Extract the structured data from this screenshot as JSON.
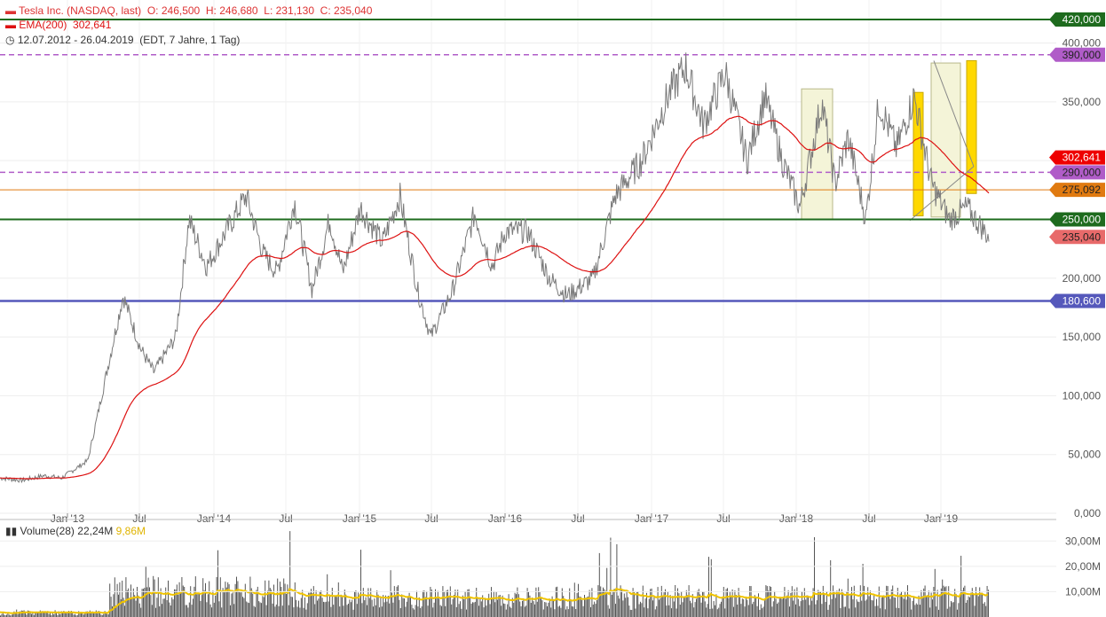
{
  "header": {
    "title": "Tesla Inc. (NASDAQ, last)",
    "ohlc": "O: 246,500  H: 246,680  L: 231,130  C: 235,040",
    "ema_label": "EMA(200)",
    "ema_value": "302,641",
    "range": "12.07.2012 - 26.04.2019",
    "range_meta": "(EDT, 7 Jahre, 1 Tag)"
  },
  "volume_header": {
    "label": "Volume(28)",
    "value": "22,24M",
    "avg": "9,86M"
  },
  "colors": {
    "price": "#7a7a7a",
    "ema": "#dd1111",
    "green_level": "#1e6b1e",
    "violet_level": "#b05cc8",
    "orange_level": "#e07a10",
    "blue_level": "#5558bb",
    "volume_bar": "#555555",
    "volume_avg": "#f0c400",
    "last_price": "#e86a6a"
  },
  "chart_data": {
    "type": "line",
    "ylim": [
      0,
      420
    ],
    "yticks": [
      "0,000",
      "50,000",
      "100,000",
      "150,000",
      "200,000",
      "350,000",
      "400,000"
    ],
    "xticks": [
      "Jan '13",
      "Jul",
      "Jan '14",
      "Jul",
      "Jan '15",
      "Jul",
      "Jan '16",
      "Jul",
      "Jan '17",
      "Jul",
      "Jan '18",
      "Jul",
      "Jan '19"
    ],
    "price_key_points": [
      [
        0,
        30
      ],
      [
        0.05,
        28
      ],
      [
        0.1,
        32
      ],
      [
        0.14,
        30
      ],
      [
        0.2,
        45
      ],
      [
        0.28,
        185
      ],
      [
        0.32,
        140
      ],
      [
        0.35,
        120
      ],
      [
        0.4,
        150
      ],
      [
        0.43,
        250
      ],
      [
        0.47,
        210
      ],
      [
        0.53,
        250
      ],
      [
        0.56,
        270
      ],
      [
        0.6,
        220
      ],
      [
        0.63,
        205
      ],
      [
        0.67,
        265
      ],
      [
        0.71,
        190
      ],
      [
        0.75,
        250
      ],
      [
        0.78,
        205
      ],
      [
        0.82,
        260
      ],
      [
        0.87,
        230
      ],
      [
        0.91,
        270
      ],
      [
        0.95,
        190
      ],
      [
        0.98,
        150
      ],
      [
        1.03,
        190
      ],
      [
        1.08,
        255
      ],
      [
        1.12,
        210
      ],
      [
        1.15,
        240
      ],
      [
        1.2,
        240
      ],
      [
        1.25,
        200
      ],
      [
        1.29,
        185
      ],
      [
        1.35,
        200
      ],
      [
        1.4,
        270
      ],
      [
        1.46,
        300
      ],
      [
        1.52,
        355
      ],
      [
        1.56,
        380
      ],
      [
        1.6,
        330
      ],
      [
        1.65,
        375
      ],
      [
        1.7,
        300
      ],
      [
        1.74,
        355
      ],
      [
        1.78,
        300
      ],
      [
        1.82,
        260
      ],
      [
        1.87,
        350
      ],
      [
        1.9,
        280
      ],
      [
        1.93,
        320
      ],
      [
        1.97,
        250
      ],
      [
        2.0,
        350
      ],
      [
        2.04,
        310
      ],
      [
        2.08,
        355
      ],
      [
        2.12,
        280
      ],
      [
        2.16,
        250
      ],
      [
        2.2,
        260
      ],
      [
        2.25,
        235
      ]
    ],
    "levels": [
      {
        "value": 420,
        "label": "420,000",
        "style": "green"
      },
      {
        "value": 390,
        "label": "390,000",
        "style": "violet"
      },
      {
        "value": 302.641,
        "label": "302,641",
        "style": "ema"
      },
      {
        "value": 290,
        "label": "290,000",
        "style": "violet"
      },
      {
        "value": 275.092,
        "label": "275,092",
        "style": "orange"
      },
      {
        "value": 250,
        "label": "250,000",
        "style": "green"
      },
      {
        "value": 235.04,
        "label": "235,040",
        "style": "last"
      },
      {
        "value": 180.6,
        "label": "180,600",
        "style": "blue"
      }
    ],
    "volume_ticks": [
      "10,00M",
      "20,00M",
      "30,00M"
    ],
    "volume_ylim": [
      0,
      35
    ]
  }
}
